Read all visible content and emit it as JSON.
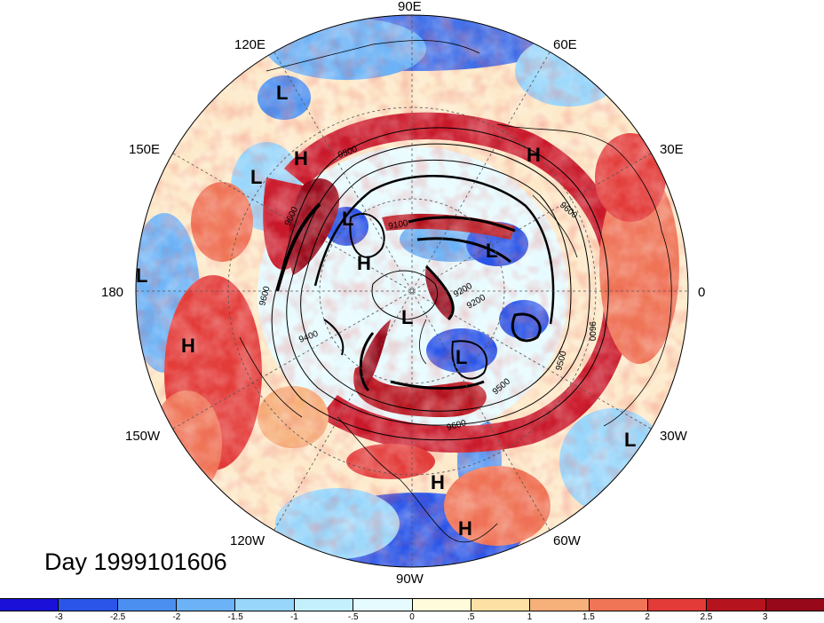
{
  "title": "Day 1999101606",
  "lon_labels": {
    "deg90e": "90E",
    "deg60e": "60E",
    "deg30e": "30E",
    "deg0": "0",
    "deg30w": "30W",
    "deg60w": "60W",
    "deg90w": "90W",
    "deg120w": "120W",
    "deg150w": "150W",
    "deg180": "180",
    "deg150e": "150E",
    "deg120e": "120E"
  },
  "pressure_centers": [
    "L",
    "H",
    "L",
    "H",
    "L",
    "H",
    "L",
    "L",
    "L",
    "L",
    "H",
    "H",
    "L",
    "H",
    "H"
  ],
  "contour_labels": [
    "9500",
    "9600",
    "9100",
    "9600",
    "9200",
    "9400",
    "9600",
    "9500",
    "9600",
    "9500",
    "9200",
    "9600"
  ],
  "colorbar": {
    "tick_labels": [
      "-3",
      "-2.5",
      "-2",
      "-1.5",
      "-1",
      "-.5",
      "0",
      ".5",
      "1",
      "1.5",
      "2",
      "2.5",
      "3"
    ],
    "colors": [
      "#1a10d8",
      "#2a55e8",
      "#4b8ff0",
      "#6cb2f6",
      "#98d6fb",
      "#c4f0fd",
      "#e6fbff",
      "#fffbdb",
      "#fde1a4",
      "#f6b07a",
      "#ef7556",
      "#e23b38",
      "#b5141f",
      "#96081a"
    ]
  }
}
